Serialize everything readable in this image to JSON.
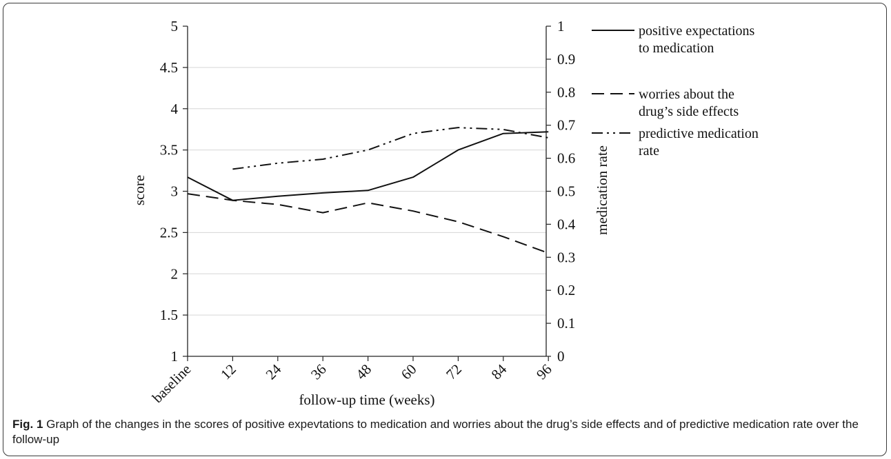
{
  "chart_data": {
    "type": "line",
    "categories": [
      "baseline",
      "12",
      "24",
      "36",
      "48",
      "60",
      "72",
      "84",
      "96"
    ],
    "xlabel": "follow-up time (weeks)",
    "ylabel": "score",
    "y2label": "medication rate",
    "ylim": [
      1,
      5
    ],
    "y2lim": [
      0,
      1
    ],
    "yticks": [
      "1",
      "1.5",
      "2",
      "2.5",
      "3",
      "3.5",
      "4",
      "4.5",
      "5"
    ],
    "y2ticks": [
      "0",
      "0.1",
      "0.2",
      "0.3",
      "0.4",
      "0.5",
      "0.6",
      "0.7",
      "0.8",
      "0.9",
      "1"
    ],
    "grid": true,
    "legend_position": "right",
    "series": [
      {
        "name": "positive expectations to medication",
        "axis": "left",
        "style": "solid",
        "values": [
          3.17,
          2.89,
          2.94,
          2.98,
          3.01,
          3.17,
          3.5,
          3.7,
          3.72
        ]
      },
      {
        "name": "worries about the drug’s side effects",
        "axis": "left",
        "style": "dashed",
        "values": [
          2.97,
          2.89,
          2.84,
          2.74,
          2.86,
          2.76,
          2.63,
          2.45,
          2.25
        ]
      },
      {
        "name": "predictive medication rate",
        "axis": "right",
        "style": "dash-dot-dot",
        "values": [
          null,
          0.567,
          0.585,
          0.597,
          0.625,
          0.675,
          0.693,
          0.687,
          0.662
        ]
      }
    ],
    "legend": [
      {
        "lines": [
          "positive expectations",
          "to medication"
        ]
      },
      {
        "lines": [
          "worries about the",
          "drug’s side effects"
        ]
      },
      {
        "lines": [
          "predictive medication",
          "rate"
        ]
      }
    ]
  },
  "caption": {
    "label": "Fig. 1",
    "text": " Graph of the changes in the scores of positive expevtations to medication and worries about the drug’s side effects and of predictive medication rate over the follow-up"
  }
}
